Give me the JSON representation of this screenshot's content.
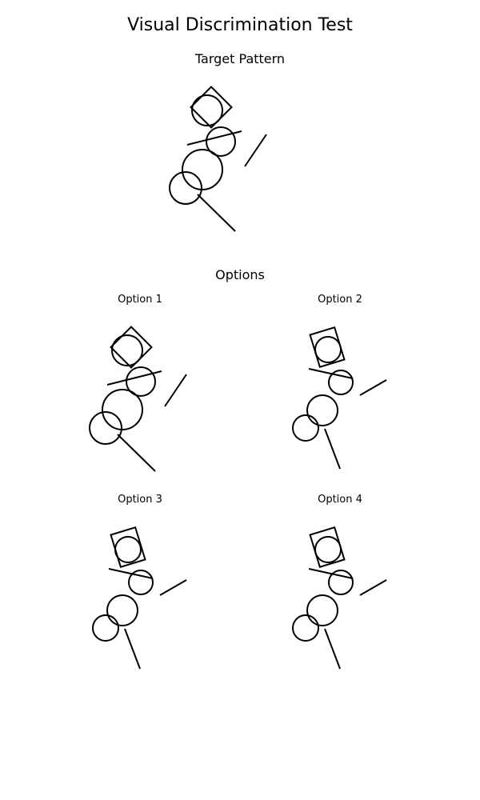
{
  "page": {
    "title": "Visual Discrimination Test"
  },
  "target": {
    "heading": "Target Pattern"
  },
  "options_section": {
    "heading": "Options",
    "options": [
      {
        "label": "Option 1"
      },
      {
        "label": "Option 2"
      },
      {
        "label": "Option 3"
      },
      {
        "label": "Option 4"
      }
    ]
  },
  "colors": {
    "stroke": "#000000",
    "background": "#ffffff"
  }
}
